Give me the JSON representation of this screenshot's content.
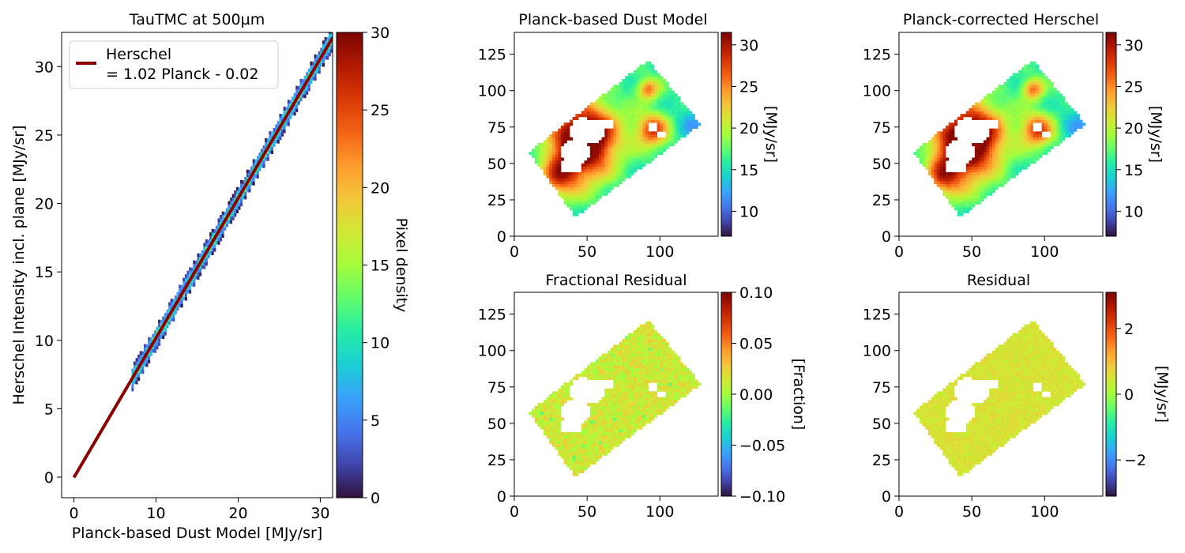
{
  "colormap": {
    "name": "turbo",
    "stops": [
      "#30123b",
      "#4145ab",
      "#4675ed",
      "#39a2fc",
      "#1bcfd4",
      "#24eca6",
      "#61fc6c",
      "#a4fc3b",
      "#d1e834",
      "#f3c63a",
      "#fe9b2d",
      "#f36315",
      "#d93806",
      "#b11901",
      "#7a0403"
    ]
  },
  "chart_data": [
    {
      "id": "scatter",
      "type": "heatmap",
      "title": "TauTMC at 500µm",
      "xlabel": "Planck-based Dust Model [MJy/sr]",
      "ylabel": "Herschel Intensity incl. plane [MJy/sr]",
      "xlim": [
        -1.5,
        31.5
      ],
      "ylim": [
        -1.5,
        32.5
      ],
      "xticks": [
        0,
        10,
        20,
        30
      ],
      "yticks": [
        0,
        5,
        10,
        15,
        20,
        25,
        30
      ],
      "density_range": [
        7,
        31.5
      ],
      "fit": {
        "slope": 1.02,
        "intercept": -0.02,
        "x_range": [
          0,
          31.5
        ]
      },
      "legend": {
        "position": "upper-left",
        "line1": "Herschel",
        "line2": "= 1.02 Planck - 0.02",
        "color": "#8b0000"
      },
      "colorbar": {
        "label": "Pixel density",
        "range": [
          0,
          30
        ],
        "ticks": [
          0,
          5,
          10,
          15,
          20,
          25,
          30
        ]
      }
    },
    {
      "id": "model",
      "type": "heatmap",
      "title": "Planck-based Dust Model",
      "xlim": [
        0,
        140
      ],
      "ylim": [
        0,
        140
      ],
      "xticks": [
        0,
        50,
        100
      ],
      "yticks": [
        0,
        25,
        50,
        75,
        100,
        125
      ],
      "colorbar": {
        "label": "[MJy/sr]",
        "range": [
          7,
          31.5
        ],
        "ticks": [
          10,
          15,
          20,
          25,
          30
        ]
      }
    },
    {
      "id": "corrected",
      "type": "heatmap",
      "title": "Planck-corrected Herschel",
      "xlim": [
        0,
        140
      ],
      "ylim": [
        0,
        140
      ],
      "xticks": [
        0,
        50,
        100
      ],
      "yticks": [
        0,
        25,
        50,
        75,
        100,
        125
      ],
      "colorbar": {
        "label": "[MJy/sr]",
        "range": [
          7,
          31.5
        ],
        "ticks": [
          10,
          15,
          20,
          25,
          30
        ]
      }
    },
    {
      "id": "fracres",
      "type": "heatmap",
      "title": "Fractional Residual",
      "xlim": [
        0,
        140
      ],
      "ylim": [
        0,
        140
      ],
      "xticks": [
        0,
        50,
        100
      ],
      "yticks": [
        0,
        25,
        50,
        75,
        100,
        125
      ],
      "colorbar": {
        "label": "[Fraction]",
        "range": [
          -0.1,
          0.1
        ],
        "ticks": [
          0.1,
          0.05,
          0.0,
          -0.05,
          -0.1
        ],
        "tick_labels": [
          "0.10",
          "0.05",
          "0.00",
          "−0.05",
          "−0.10"
        ]
      }
    },
    {
      "id": "res",
      "type": "heatmap",
      "title": "Residual",
      "xlim": [
        0,
        140
      ],
      "ylim": [
        0,
        140
      ],
      "xticks": [
        0,
        50,
        100
      ],
      "yticks": [
        0,
        25,
        50,
        75,
        100,
        125
      ],
      "colorbar": {
        "label": "[MJy/sr]",
        "range": [
          -3.1,
          3.1
        ],
        "ticks": [
          2,
          0,
          -2
        ],
        "tick_labels": [
          "2",
          "0",
          "−2"
        ]
      }
    }
  ]
}
